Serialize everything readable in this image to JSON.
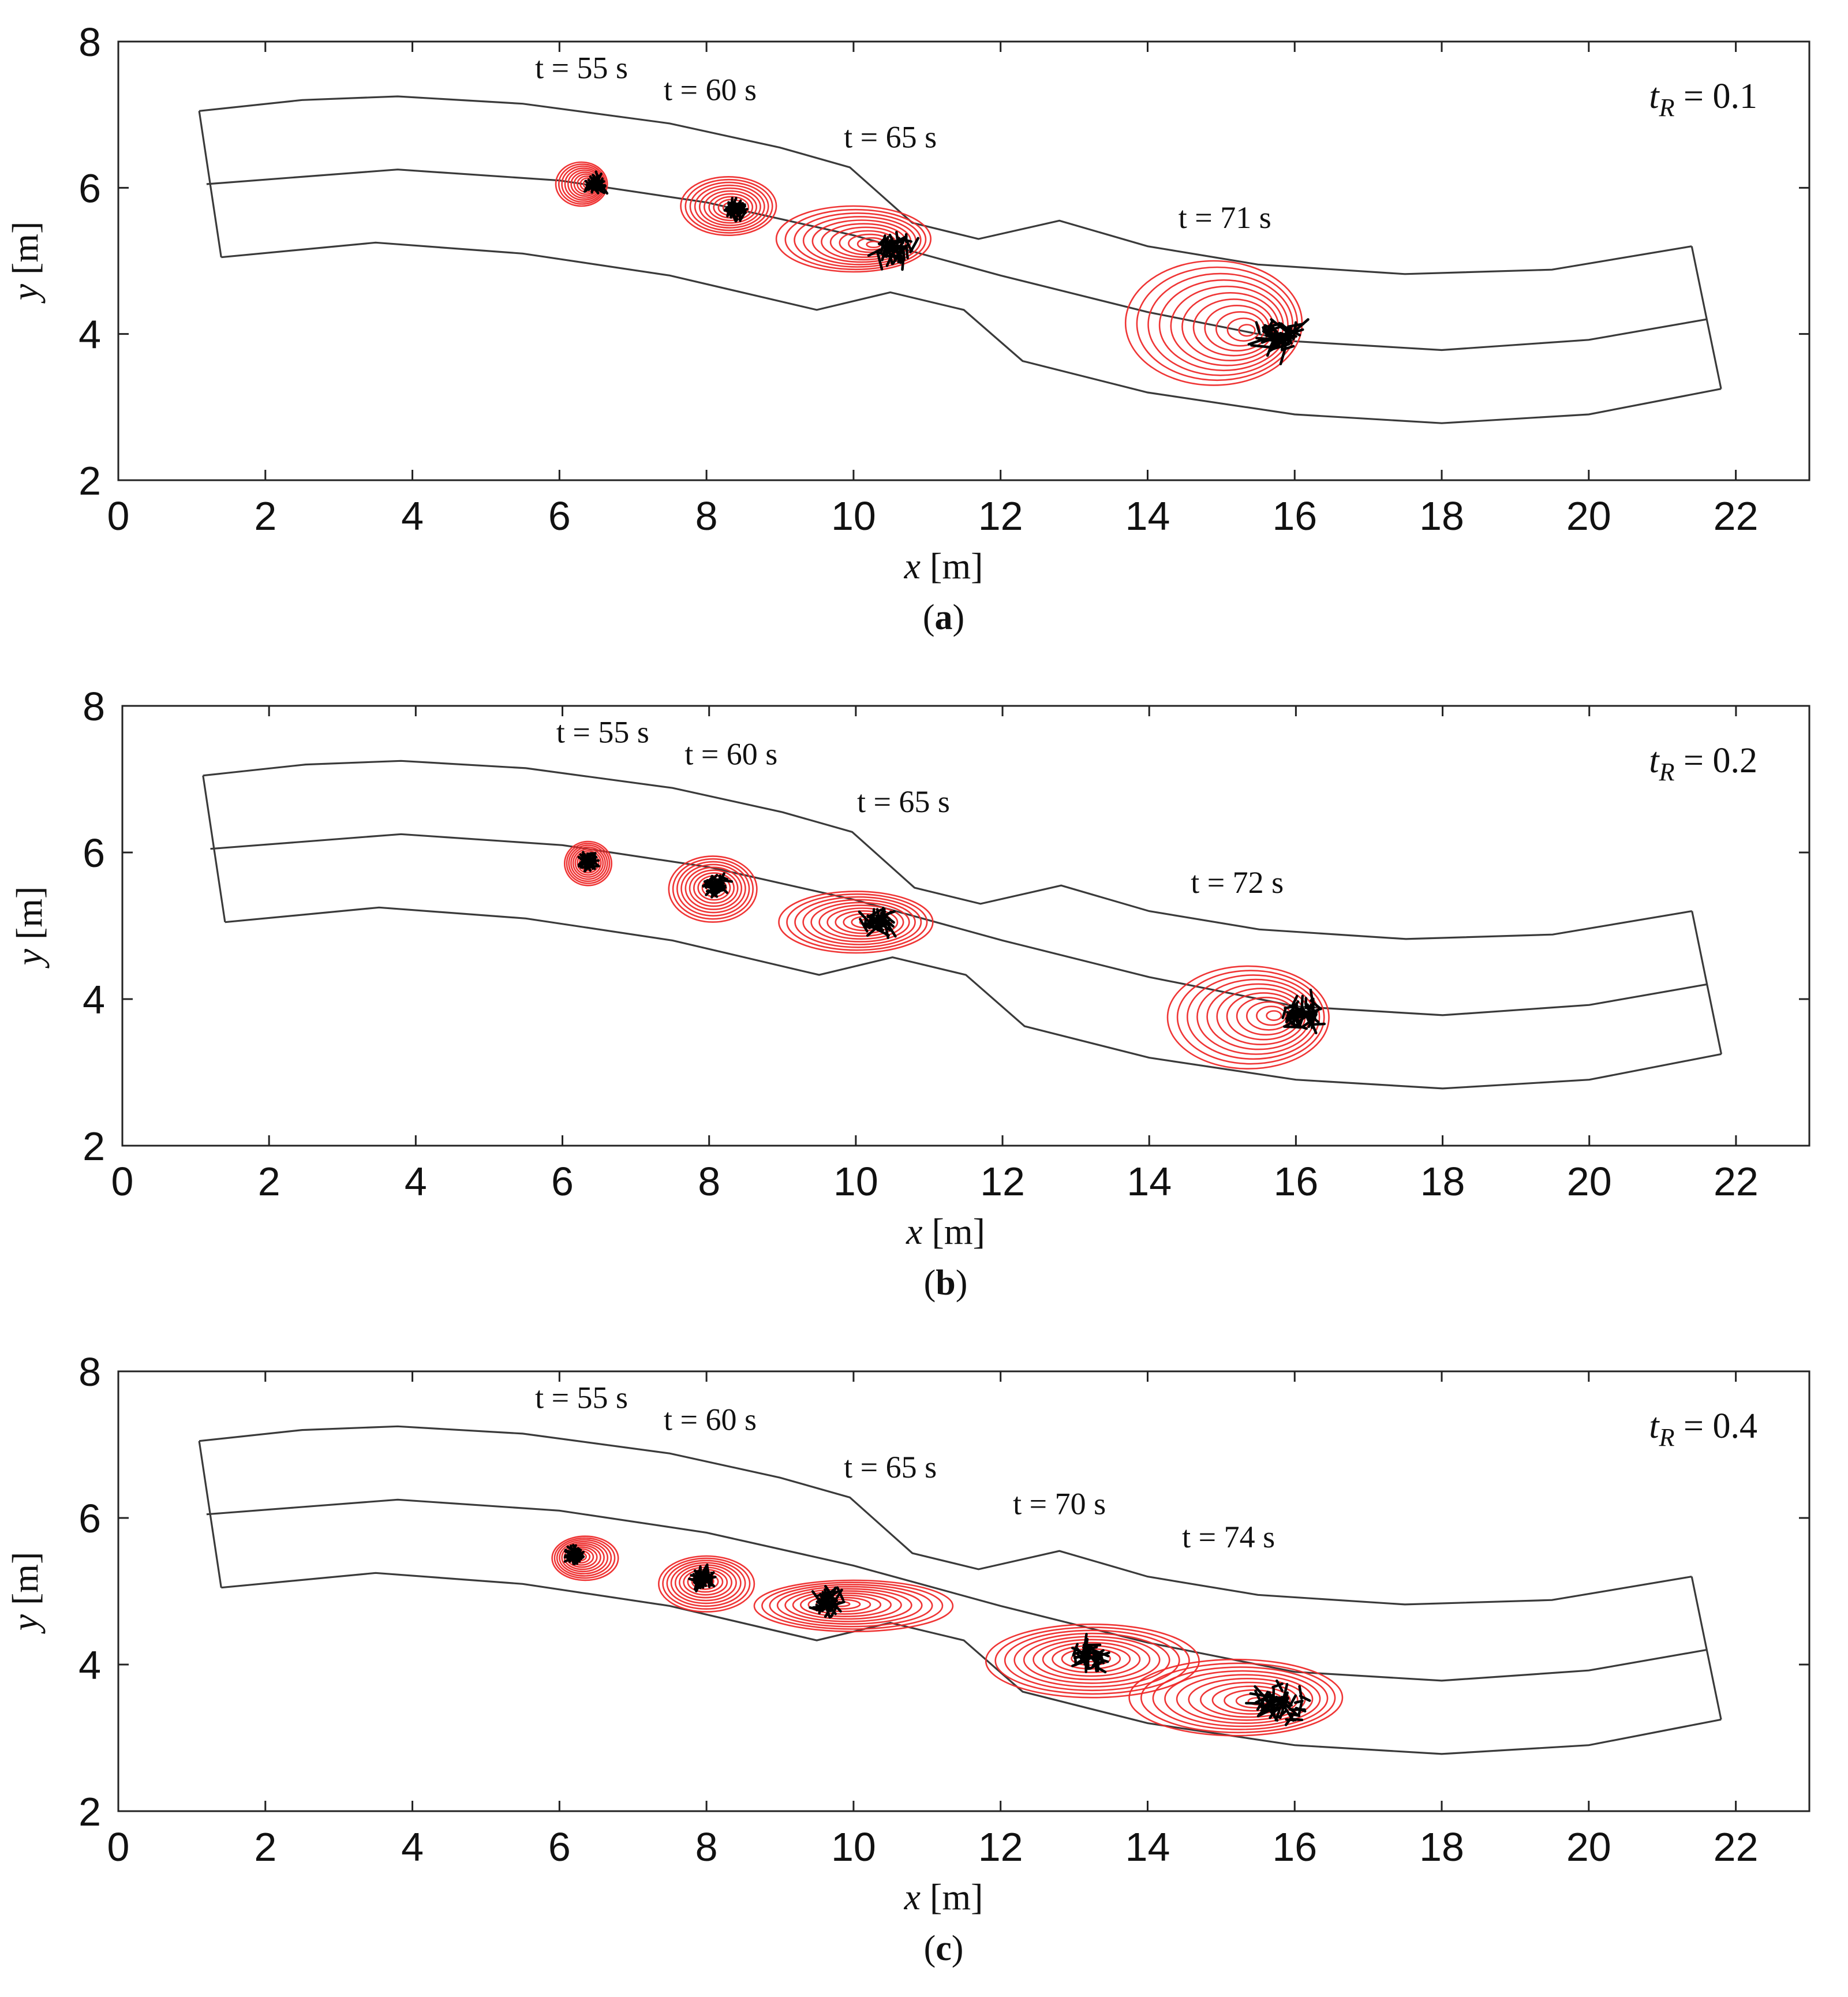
{
  "chart_data": [
    {
      "type": "scatter",
      "panel": "a",
      "caption_label": "a",
      "tR_symbol": "t",
      "tR_subscript": "R",
      "tR_value": "= 0.1",
      "xlabel_var": "x",
      "xlabel_unit": "[m]",
      "ylabel_var": "y",
      "ylabel_unit": "[m]",
      "xlim": [
        0,
        23
      ],
      "ylim": [
        2,
        8
      ],
      "xticks": [
        0,
        2,
        4,
        6,
        8,
        10,
        12,
        14,
        16,
        18,
        20,
        22
      ],
      "yticks": [
        2,
        4,
        6,
        8
      ],
      "time_labels": [
        {
          "text": "t = 55 s",
          "x": 6.3,
          "y": 7.5
        },
        {
          "text": "t = 60 s",
          "x": 8.05,
          "y": 7.2
        },
        {
          "text": "t = 65 s",
          "x": 10.5,
          "y": 6.55
        },
        {
          "text": "t = 71 s",
          "x": 15.05,
          "y": 5.45
        }
      ],
      "clouds": [
        {
          "x": 6.3,
          "y": 6.05,
          "rx": 0.35,
          "ry": 0.3,
          "px": 6.5,
          "py": 6.05,
          "spread": 0.13,
          "n": 30
        },
        {
          "x": 8.3,
          "y": 5.75,
          "rx": 0.65,
          "ry": 0.4,
          "px": 8.4,
          "py": 5.7,
          "spread": 0.15,
          "n": 30
        },
        {
          "x": 10.0,
          "y": 5.3,
          "rx": 1.05,
          "ry": 0.45,
          "px": 10.55,
          "py": 5.15,
          "spread": 0.3,
          "n": 45
        },
        {
          "x": 14.9,
          "y": 4.15,
          "rx": 1.2,
          "ry": 0.85,
          "px": 15.8,
          "py": 3.95,
          "spread": 0.38,
          "n": 55
        }
      ]
    },
    {
      "type": "scatter",
      "panel": "b",
      "caption_label": "b",
      "tR_symbol": "t",
      "tR_subscript": "R",
      "tR_value": "= 0.2",
      "xlabel_var": "x",
      "xlabel_unit": "[m]",
      "ylabel_var": "y",
      "ylabel_unit": "[m]",
      "xlim": [
        0,
        23
      ],
      "ylim": [
        2,
        8
      ],
      "xticks": [
        0,
        2,
        4,
        6,
        8,
        10,
        12,
        14,
        16,
        18,
        20,
        22
      ],
      "yticks": [
        2,
        4,
        6,
        8
      ],
      "time_labels": [
        {
          "text": "t = 55 s",
          "x": 6.55,
          "y": 7.5
        },
        {
          "text": "t = 60 s",
          "x": 8.3,
          "y": 7.2
        },
        {
          "text": "t = 65 s",
          "x": 10.65,
          "y": 6.55
        },
        {
          "text": "t = 72 s",
          "x": 15.2,
          "y": 5.45
        }
      ],
      "clouds": [
        {
          "x": 6.35,
          "y": 5.85,
          "rx": 0.32,
          "ry": 0.3,
          "px": 6.35,
          "py": 5.88,
          "spread": 0.12,
          "n": 30
        },
        {
          "x": 8.05,
          "y": 5.5,
          "rx": 0.6,
          "ry": 0.45,
          "px": 8.1,
          "py": 5.55,
          "spread": 0.18,
          "n": 35
        },
        {
          "x": 10.0,
          "y": 5.05,
          "rx": 1.05,
          "ry": 0.42,
          "px": 10.3,
          "py": 5.05,
          "spread": 0.28,
          "n": 40
        },
        {
          "x": 15.35,
          "y": 3.75,
          "rx": 1.1,
          "ry": 0.7,
          "px": 16.05,
          "py": 3.8,
          "spread": 0.35,
          "n": 50
        }
      ]
    },
    {
      "type": "scatter",
      "panel": "c",
      "caption_label": "c",
      "tR_symbol": "t",
      "tR_subscript": "R",
      "tR_value": "= 0.4",
      "xlabel_var": "x",
      "xlabel_unit": "[m]",
      "ylabel_var": "y",
      "ylabel_unit": "[m]",
      "xlim": [
        0,
        23
      ],
      "ylim": [
        2,
        8
      ],
      "xticks": [
        0,
        2,
        4,
        6,
        8,
        10,
        12,
        14,
        16,
        18,
        20,
        22
      ],
      "yticks": [
        2,
        4,
        6,
        8
      ],
      "time_labels": [
        {
          "text": "t = 55 s",
          "x": 6.3,
          "y": 7.5
        },
        {
          "text": "t = 60 s",
          "x": 8.05,
          "y": 7.2
        },
        {
          "text": "t = 65 s",
          "x": 10.5,
          "y": 6.55
        },
        {
          "text": "t = 70 s",
          "x": 12.8,
          "y": 6.05
        },
        {
          "text": "t = 74 s",
          "x": 15.1,
          "y": 5.6
        }
      ],
      "clouds": [
        {
          "x": 6.35,
          "y": 5.45,
          "rx": 0.45,
          "ry": 0.3,
          "px": 6.2,
          "py": 5.5,
          "spread": 0.1,
          "n": 30
        },
        {
          "x": 8.0,
          "y": 5.1,
          "rx": 0.65,
          "ry": 0.38,
          "px": 7.95,
          "py": 5.18,
          "spread": 0.17,
          "n": 35
        },
        {
          "x": 10.0,
          "y": 4.8,
          "rx": 1.35,
          "ry": 0.35,
          "px": 9.65,
          "py": 4.85,
          "spread": 0.25,
          "n": 40
        },
        {
          "x": 13.25,
          "y": 4.05,
          "rx": 1.45,
          "ry": 0.5,
          "px": 13.2,
          "py": 4.12,
          "spread": 0.3,
          "n": 40
        },
        {
          "x": 15.2,
          "y": 3.55,
          "rx": 1.45,
          "ry": 0.52,
          "px": 15.8,
          "py": 3.45,
          "spread": 0.42,
          "n": 55
        }
      ]
    }
  ],
  "channel": {
    "upper_bank": [
      [
        1.1,
        7.05
      ],
      [
        2.5,
        7.2
      ],
      [
        3.8,
        7.25
      ],
      [
        5.5,
        7.15
      ],
      [
        7.5,
        6.88
      ],
      [
        9.0,
        6.55
      ],
      [
        9.95,
        6.28
      ],
      [
        10.8,
        5.52
      ],
      [
        11.7,
        5.3
      ],
      [
        12.8,
        5.55
      ],
      [
        14.0,
        5.2
      ],
      [
        15.5,
        4.95
      ],
      [
        17.5,
        4.82
      ],
      [
        19.5,
        4.88
      ],
      [
        21.4,
        5.2
      ]
    ],
    "centerline": [
      [
        1.2,
        6.05
      ],
      [
        3.8,
        6.25
      ],
      [
        6.0,
        6.1
      ],
      [
        8.0,
        5.8
      ],
      [
        10.0,
        5.35
      ],
      [
        12.0,
        4.8
      ],
      [
        14.0,
        4.3
      ],
      [
        16.0,
        3.9
      ],
      [
        18.0,
        3.78
      ],
      [
        20.0,
        3.92
      ],
      [
        21.6,
        4.2
      ]
    ],
    "lower_bank": [
      [
        1.4,
        5.05
      ],
      [
        3.5,
        5.25
      ],
      [
        5.5,
        5.1
      ],
      [
        7.5,
        4.8
      ],
      [
        9.5,
        4.33
      ],
      [
        10.5,
        4.57
      ],
      [
        11.5,
        4.33
      ],
      [
        12.3,
        3.63
      ],
      [
        14.0,
        3.2
      ],
      [
        16.0,
        2.9
      ],
      [
        18.0,
        2.78
      ],
      [
        20.0,
        2.9
      ],
      [
        21.8,
        3.25
      ]
    ],
    "inlet": [
      [
        1.1,
        7.05
      ],
      [
        1.4,
        5.05
      ]
    ],
    "outlet": [
      [
        21.4,
        5.2
      ],
      [
        21.8,
        3.25
      ]
    ]
  }
}
